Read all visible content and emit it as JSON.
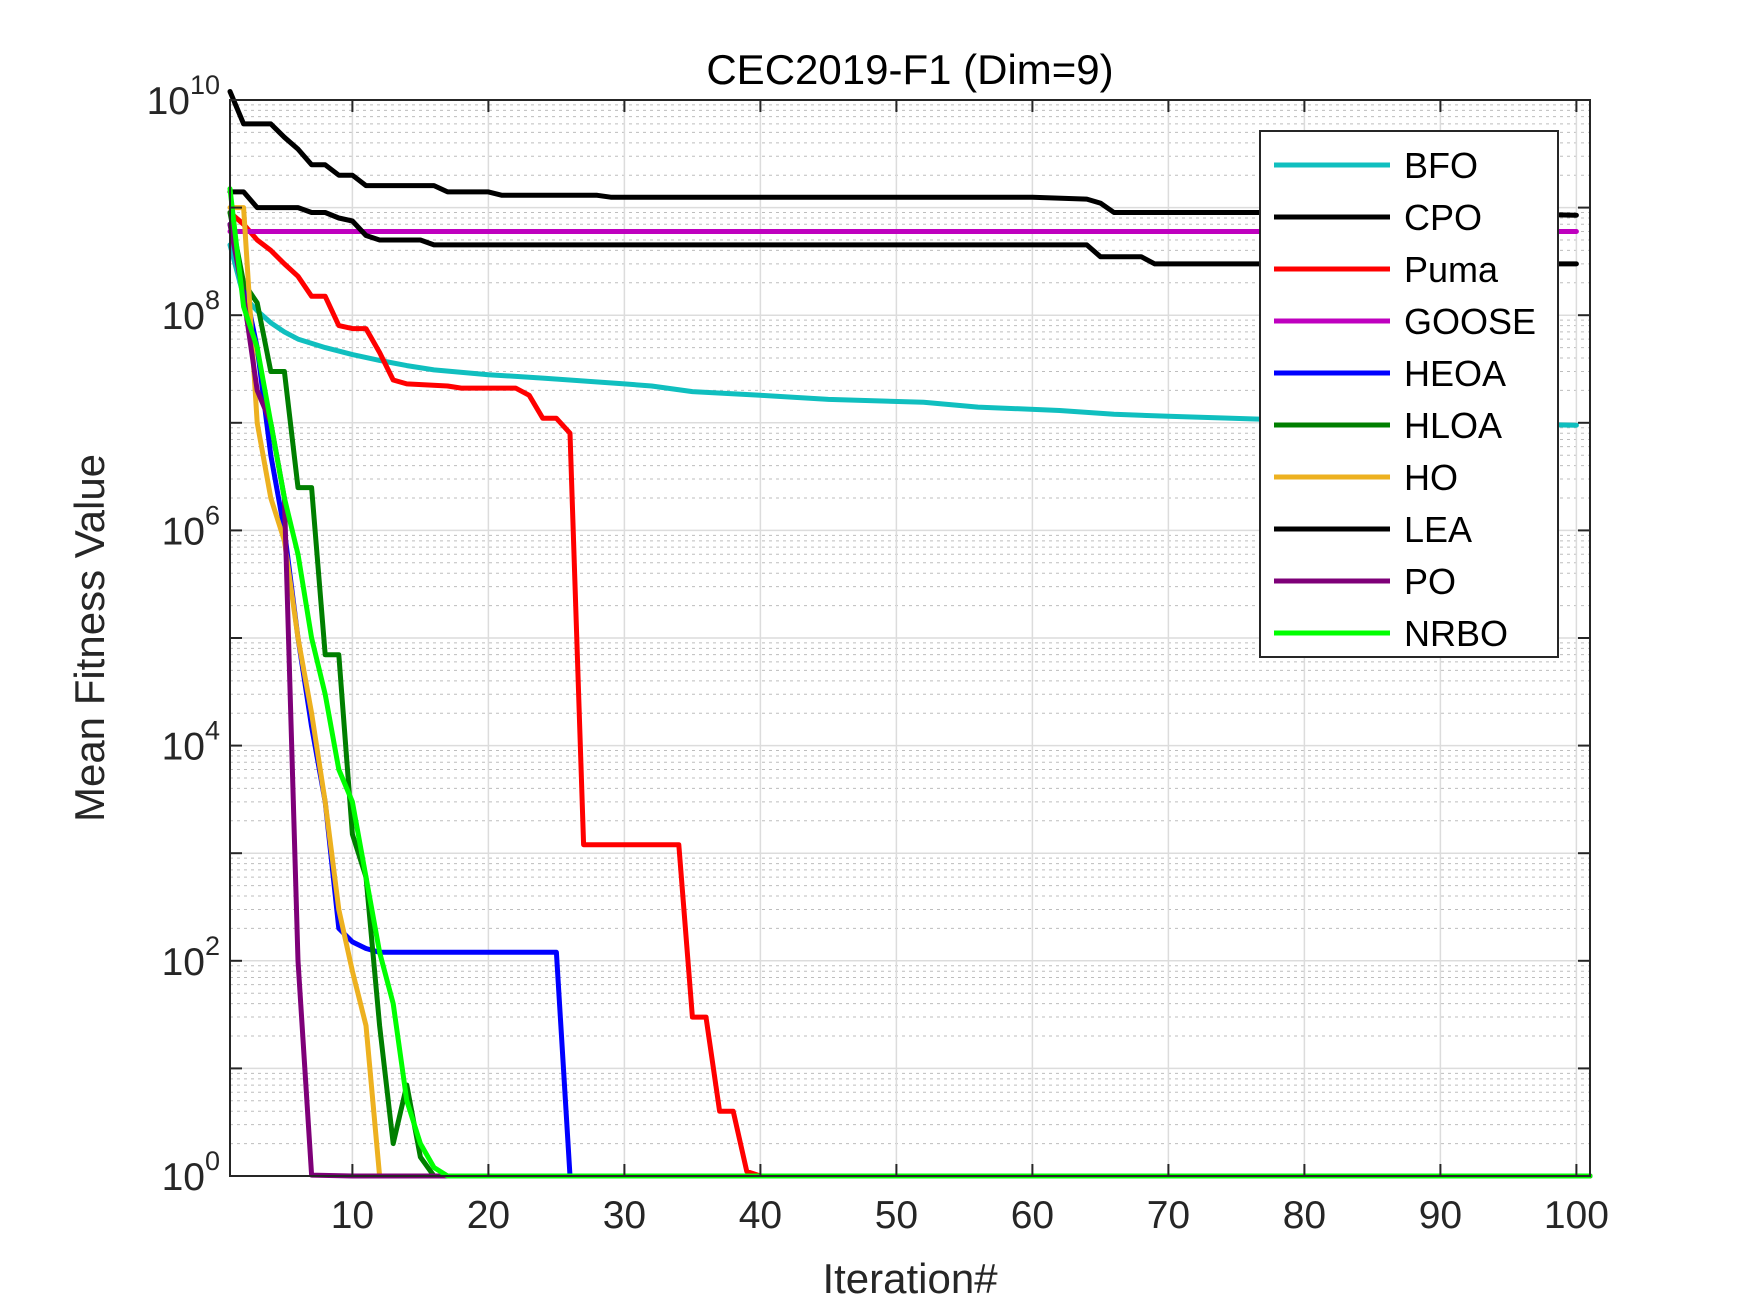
{
  "chart_data": {
    "type": "line",
    "title": "CEC2019-F1 (Dim=9)",
    "xlabel": "Iteration#",
    "ylabel": "Mean Fitness Value",
    "xlim": [
      1,
      101
    ],
    "ylim": [
      1,
      10000000000
    ],
    "yscale": "log",
    "grid": true,
    "legend_location": "top-right",
    "xticks": [
      10,
      20,
      30,
      40,
      50,
      60,
      70,
      80,
      90,
      100
    ],
    "xtick_labels": [
      "10",
      "20",
      "30",
      "40",
      "50",
      "60",
      "70",
      "80",
      "90",
      "100"
    ],
    "yticks": [
      1,
      100,
      10000,
      1000000,
      100000000,
      10000000000
    ],
    "ytick_labels": [
      {
        "base": "10",
        "exp": "0"
      },
      {
        "base": "10",
        "exp": "2"
      },
      {
        "base": "10",
        "exp": "4"
      },
      {
        "base": "10",
        "exp": "6"
      },
      {
        "base": "10",
        "exp": "8"
      },
      {
        "base": "10",
        "exp": "10"
      }
    ],
    "series": [
      {
        "name": "BFO",
        "color": "#10BFBF",
        "points": [
          [
            1,
            450000000.0
          ],
          [
            2,
            150000000.0
          ],
          [
            3,
            110000000.0
          ],
          [
            4,
            85000000.0
          ],
          [
            5,
            70000000.0
          ],
          [
            6,
            60000000.0
          ],
          [
            8,
            50000000.0
          ],
          [
            10,
            43000000.0
          ],
          [
            12,
            38000000.0
          ],
          [
            14,
            34000000.0
          ],
          [
            16,
            31000000.0
          ],
          [
            20,
            28000000.0
          ],
          [
            24,
            26000000.0
          ],
          [
            30,
            23000000.0
          ],
          [
            32,
            22000000.0
          ],
          [
            35,
            19500000.0
          ],
          [
            40,
            18000000.0
          ],
          [
            45,
            16500000.0
          ],
          [
            52,
            15500000.0
          ],
          [
            56,
            14000000.0
          ],
          [
            62,
            13000000.0
          ],
          [
            66,
            12000000.0
          ],
          [
            70,
            11500000.0
          ],
          [
            80,
            10500000.0
          ],
          [
            90,
            10000000.0
          ],
          [
            100,
            9500000.0
          ]
        ]
      },
      {
        "name": "CPO",
        "color": "#000000",
        "points": [
          [
            1,
            12000000000.0
          ],
          [
            2,
            6000000000.0
          ],
          [
            4,
            6000000000.0
          ],
          [
            5,
            4500000000.0
          ],
          [
            6,
            3500000000.0
          ],
          [
            7,
            2500000000.0
          ],
          [
            8,
            2500000000.0
          ],
          [
            9,
            2000000000.0
          ],
          [
            10,
            2000000000.0
          ],
          [
            11,
            1600000000.0
          ],
          [
            12,
            1600000000.0
          ],
          [
            13,
            1600000000.0
          ],
          [
            16,
            1600000000.0
          ],
          [
            17,
            1400000000.0
          ],
          [
            20,
            1400000000.0
          ],
          [
            21,
            1300000000.0
          ],
          [
            28,
            1300000000.0
          ],
          [
            29,
            1250000000.0
          ],
          [
            60,
            1250000000.0
          ],
          [
            64,
            1200000000.0
          ],
          [
            65,
            1100000000.0
          ],
          [
            66,
            900000000.0
          ],
          [
            70,
            900000000.0
          ],
          [
            80,
            900000000.0
          ],
          [
            90,
            900000000.0
          ],
          [
            100,
            850000000.0
          ]
        ]
      },
      {
        "name": "Puma",
        "color": "#FF0000",
        "points": [
          [
            1,
            900000000.0
          ],
          [
            2,
            700000000.0
          ],
          [
            3,
            500000000.0
          ],
          [
            4,
            400000000.0
          ],
          [
            5,
            300000000.0
          ],
          [
            6,
            230000000.0
          ],
          [
            7,
            150000000.0
          ],
          [
            8,
            150000000.0
          ],
          [
            9,
            80000000.0
          ],
          [
            10,
            75000000.0
          ],
          [
            11,
            75000000.0
          ],
          [
            12,
            45000000.0
          ],
          [
            13,
            25000000.0
          ],
          [
            14,
            23000000.0
          ],
          [
            17,
            22000000.0
          ],
          [
            18,
            21000000.0
          ],
          [
            22,
            21000000.0
          ],
          [
            23,
            18000000.0
          ],
          [
            24,
            11000000.0
          ],
          [
            25,
            11000000.0
          ],
          [
            26,
            8000000.0
          ],
          [
            27,
            1200.0
          ],
          [
            34,
            1200.0
          ],
          [
            35,
            30.0
          ],
          [
            36,
            30.0
          ],
          [
            37,
            4
          ],
          [
            38,
            4
          ],
          [
            39,
            1.1
          ],
          [
            40,
            1
          ],
          [
            101,
            1
          ]
        ]
      },
      {
        "name": "GOOSE",
        "color": "#BF00BF",
        "points": [
          [
            1,
            600000000.0
          ],
          [
            100,
            600000000.0
          ]
        ]
      },
      {
        "name": "HEOA",
        "color": "#0000FF",
        "points": [
          [
            1,
            700000000.0
          ],
          [
            2,
            200000000.0
          ],
          [
            3,
            50000000.0
          ],
          [
            4,
            5000000.0
          ],
          [
            5,
            1000000.0
          ],
          [
            6,
            100000.0
          ],
          [
            7,
            15000.0
          ],
          [
            8,
            3000.0
          ],
          [
            9,
            200.0
          ],
          [
            10,
            150.0
          ],
          [
            11,
            130.0
          ],
          [
            12,
            120.0
          ],
          [
            25,
            120.0
          ],
          [
            26,
            1
          ],
          [
            101,
            1
          ]
        ]
      },
      {
        "name": "HLOA",
        "color": "#007F00",
        "points": [
          [
            1,
            900000000.0
          ],
          [
            2,
            200000000.0
          ],
          [
            3,
            130000000.0
          ],
          [
            4,
            30000000.0
          ],
          [
            5,
            30000000.0
          ],
          [
            6,
            2500000.0
          ],
          [
            7,
            2500000.0
          ],
          [
            8,
            70000.0
          ],
          [
            9,
            70000.0
          ],
          [
            10,
            1500.0
          ],
          [
            11,
            600.0
          ],
          [
            12,
            25.0
          ],
          [
            13,
            2
          ],
          [
            14,
            7
          ],
          [
            15,
            1.5
          ],
          [
            16,
            1
          ],
          [
            101,
            1
          ]
        ]
      },
      {
        "name": "HO",
        "color": "#EDB120",
        "points": [
          [
            1,
            1000000000.0
          ],
          [
            2,
            1000000000.0
          ],
          [
            3,
            10000000.0
          ],
          [
            4,
            2000000.0
          ],
          [
            5,
            800000.0
          ],
          [
            6,
            100000.0
          ],
          [
            7,
            20000.0
          ],
          [
            8,
            3000.0
          ],
          [
            9,
            300.0
          ],
          [
            10,
            80.0
          ],
          [
            11,
            25.0
          ],
          [
            12,
            1
          ],
          [
            101,
            1
          ]
        ]
      },
      {
        "name": "LEA",
        "color": "#000000",
        "points": [
          [
            1,
            1400000000.0
          ],
          [
            2,
            1400000000.0
          ],
          [
            3,
            1000000000.0
          ],
          [
            4,
            1000000000.0
          ],
          [
            5,
            1000000000.0
          ],
          [
            6,
            1000000000.0
          ],
          [
            7,
            900000000.0
          ],
          [
            8,
            900000000.0
          ],
          [
            9,
            800000000.0
          ],
          [
            10,
            750000000.0
          ],
          [
            11,
            550000000.0
          ],
          [
            12,
            500000000.0
          ],
          [
            15,
            500000000.0
          ],
          [
            16,
            450000000.0
          ],
          [
            64,
            450000000.0
          ],
          [
            65,
            350000000.0
          ],
          [
            68,
            350000000.0
          ],
          [
            69,
            300000000.0
          ],
          [
            100,
            300000000.0
          ]
        ]
      },
      {
        "name": "PO",
        "color": "#7E0078",
        "points": [
          [
            1,
            700000000.0
          ],
          [
            2,
            150000000.0
          ],
          [
            3,
            20000000.0
          ],
          [
            4,
            10000000.0
          ],
          [
            5,
            2000000.0
          ],
          [
            6,
            100.0
          ],
          [
            7,
            1.02
          ],
          [
            10,
            1
          ],
          [
            101,
            1
          ]
        ]
      },
      {
        "name": "NRBO",
        "color": "#00FF00",
        "points": [
          [
            1,
            1500000000.0
          ],
          [
            2,
            120000000.0
          ],
          [
            3,
            50000000.0
          ],
          [
            4,
            10000000.0
          ],
          [
            5,
            2000000.0
          ],
          [
            6,
            600000.0
          ],
          [
            7,
            100000.0
          ],
          [
            8,
            30000.0
          ],
          [
            9,
            6000.0
          ],
          [
            10,
            3000.0
          ],
          [
            11,
            600.0
          ],
          [
            12,
            120.0
          ],
          [
            13,
            40.0
          ],
          [
            14,
            5
          ],
          [
            15,
            2
          ],
          [
            16,
            1.2
          ],
          [
            17,
            1
          ],
          [
            101,
            1
          ]
        ]
      }
    ]
  }
}
